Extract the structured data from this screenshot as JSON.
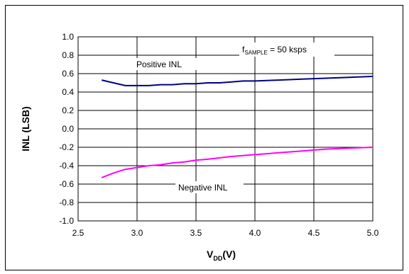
{
  "chart_data": {
    "type": "line",
    "xlabel": {
      "main": "V",
      "sub": "DD",
      "suffix": "(V)"
    },
    "ylabel": "INL (LSB)",
    "xlim": [
      2.5,
      5.0
    ],
    "ylim": [
      -1.0,
      1.0
    ],
    "xticks": [
      "2.5",
      "3.0",
      "3.5",
      "4.0",
      "4.5",
      "5.0"
    ],
    "yticks": [
      "1.0",
      "0.8",
      "0.6",
      "0.4",
      "0.2",
      "0.0",
      "-0.2",
      "-0.4",
      "-0.6",
      "-0.8",
      "-1.0"
    ],
    "grid": true,
    "annotation": {
      "main": "f",
      "sub": "SAMPLE",
      "suffix": " = 50 ksps"
    },
    "series": [
      {
        "name": "Positive INL",
        "color": "#000080",
        "x": [
          2.7,
          2.8,
          2.9,
          3.0,
          3.1,
          3.2,
          3.3,
          3.4,
          3.5,
          3.6,
          3.7,
          3.8,
          3.9,
          4.0,
          4.2,
          4.4,
          4.6,
          4.8,
          5.0
        ],
        "y": [
          0.53,
          0.5,
          0.47,
          0.47,
          0.47,
          0.48,
          0.48,
          0.49,
          0.49,
          0.5,
          0.5,
          0.51,
          0.52,
          0.52,
          0.53,
          0.54,
          0.55,
          0.56,
          0.57
        ]
      },
      {
        "name": "Negative INL",
        "color": "#ff00ff",
        "x": [
          2.7,
          2.8,
          2.9,
          3.0,
          3.1,
          3.2,
          3.3,
          3.4,
          3.5,
          3.6,
          3.8,
          4.0,
          4.2,
          4.4,
          4.6,
          4.8,
          5.0
        ],
        "y": [
          -0.53,
          -0.48,
          -0.44,
          -0.42,
          -0.4,
          -0.39,
          -0.37,
          -0.36,
          -0.34,
          -0.33,
          -0.3,
          -0.28,
          -0.26,
          -0.24,
          -0.22,
          -0.21,
          -0.2
        ]
      }
    ]
  }
}
